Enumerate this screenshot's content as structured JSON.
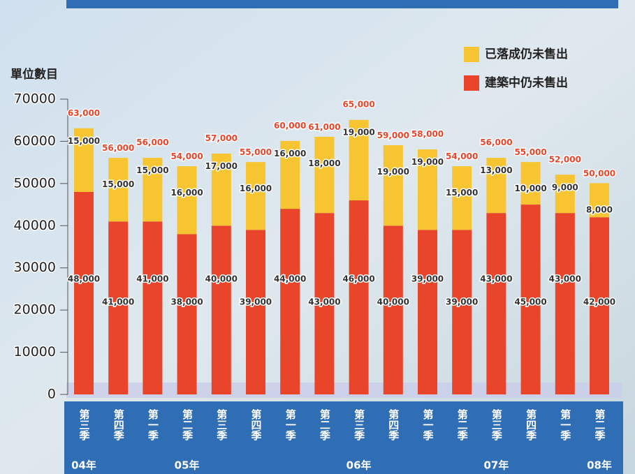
{
  "chart_data": {
    "type": "stacked-bar",
    "y_label": "單位數目",
    "categories": [
      "第三季",
      "第四季",
      "第一季",
      "第二季",
      "第三季",
      "第四季",
      "第一季",
      "第二季",
      "第三季",
      "第四季",
      "第一季",
      "第二季",
      "第三季",
      "第四季",
      "第一季",
      "第二季"
    ],
    "years": [
      "04年",
      null,
      null,
      "05年",
      null,
      null,
      null,
      null,
      "06年",
      null,
      null,
      null,
      "07年",
      null,
      null,
      "08年"
    ],
    "series": [
      {
        "name": "建築中仍未售出",
        "color": "#e8452a",
        "values": [
          48000,
          41000,
          41000,
          38000,
          40000,
          39000,
          44000,
          43000,
          46000,
          40000,
          39000,
          39000,
          43000,
          45000,
          43000,
          42000
        ],
        "value_labels": [
          "48,000",
          "41,000",
          "41,000",
          "38,000",
          "40,000",
          "39,000",
          "44,000",
          "43,000",
          "46,000",
          "40,000",
          "39,000",
          "39,000",
          "43,000",
          "45,000",
          "43,000",
          "42,000"
        ]
      },
      {
        "name": "已落成仍未售出",
        "color": "#f7c531",
        "values": [
          15000,
          15000,
          15000,
          16000,
          17000,
          16000,
          16000,
          18000,
          19000,
          19000,
          19000,
          15000,
          13000,
          10000,
          9000,
          8000
        ],
        "value_labels": [
          "15,000",
          "15,000",
          "15,000",
          "16,000",
          "17,000",
          "16,000",
          "16,000",
          "18,000",
          "19,000",
          "19,000",
          "19,000",
          "15,000",
          "13,000",
          "10,000",
          "9,000",
          "8,000"
        ]
      }
    ],
    "totals": {
      "values": [
        63000,
        56000,
        56000,
        54000,
        57000,
        55000,
        60000,
        61000,
        65000,
        59000,
        58000,
        54000,
        56000,
        55000,
        52000,
        50000
      ],
      "value_labels": [
        "63,000",
        "56,000",
        "56,000",
        "54,000",
        "57,000",
        "55,000",
        "60,000",
        "61,000",
        "65,000",
        "59,000",
        "58,000",
        "54,000",
        "56,000",
        "55,000",
        "52,000",
        "50,000"
      ]
    },
    "ylim": [
      0,
      70000
    ],
    "yticks": [
      0,
      10000,
      20000,
      30000,
      40000,
      50000,
      60000,
      70000
    ]
  }
}
